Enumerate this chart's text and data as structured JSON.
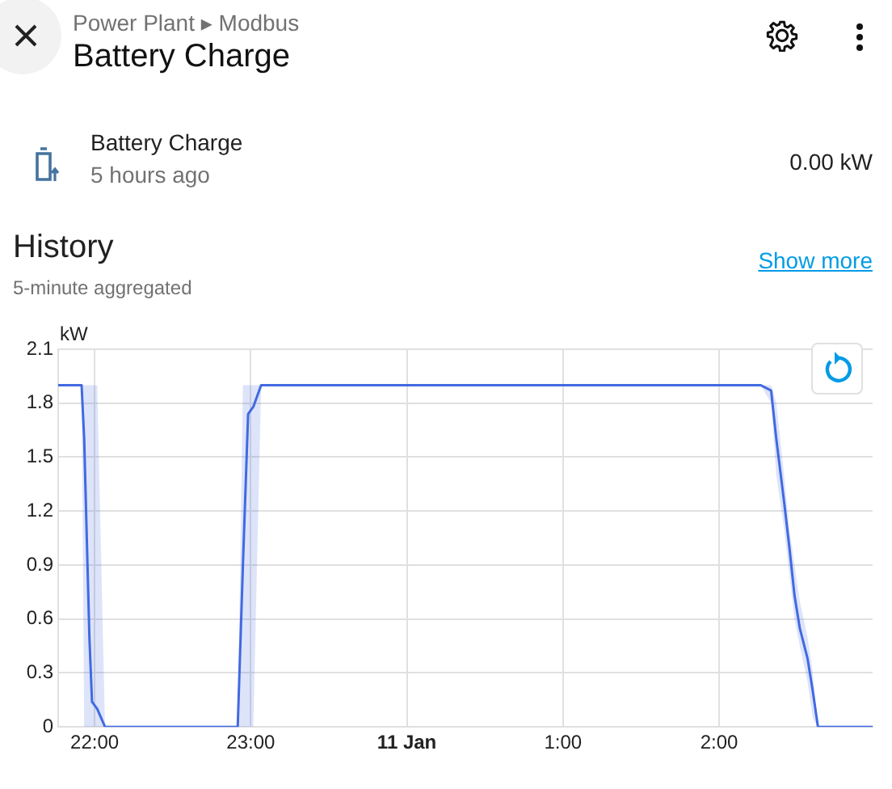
{
  "chart_data": {
    "type": "line",
    "title": "Battery Charge",
    "subtitle": "Power Plant ▸ Modbus",
    "ylabel": "kW",
    "annotations": [
      "Battery Charge",
      "5 hours ago",
      "0.00 kW",
      "History",
      "5-minute aggregated",
      "Show more"
    ],
    "x": [
      "--01-10T21:46",
      "--01-10T21:55",
      "--01-10T21:56",
      "--01-10T21:58",
      "--01-10T21:59",
      "--01-10T22:01",
      "--01-10T22:04",
      "--01-10T22:30",
      "--01-10T22:55",
      "--01-10T22:57",
      "--01-10T22:59",
      "--01-10T23:01",
      "--01-10T23:04",
      "--01-10T23:30",
      "--01-11T00:00",
      "--01-11T00:30",
      "--01-11T01:00",
      "--01-11T01:30",
      "--01-11T02:00",
      "--01-11T02:16",
      "--01-11T02:20",
      "--01-11T02:22",
      "--01-11T02:25",
      "--01-11T02:27",
      "--01-11T02:29",
      "--01-11T02:31",
      "--01-11T02:34",
      "--01-11T02:36",
      "--01-11T02:38",
      "--01-11T02:48",
      "--01-11T02:59"
    ],
    "series": [
      {
        "color": "#4169e1",
        "values": [
          1.9,
          1.9,
          1.6,
          0.5,
          0.14,
          0.1,
          0,
          0,
          0,
          0.9,
          1.74,
          1.78,
          1.9,
          1.9,
          1.9,
          1.9,
          1.9,
          1.9,
          1.9,
          1.9,
          1.87,
          1.6,
          1.25,
          1.0,
          0.73,
          0.55,
          0.38,
          0.2,
          0,
          0,
          0
        ],
        "lower": [
          1.9,
          1.9,
          0,
          0,
          0,
          0,
          0,
          0,
          0,
          0,
          0,
          0,
          1.9,
          1.9,
          1.9,
          1.9,
          1.9,
          1.9,
          1.9,
          1.9,
          1.8,
          1.4,
          1.1,
          0.85,
          0.6,
          0.45,
          0.25,
          0.05,
          0,
          0,
          0
        ],
        "upper": [
          1.9,
          1.9,
          1.9,
          1.9,
          1.9,
          1.9,
          0,
          0,
          0,
          1.9,
          1.9,
          1.9,
          1.9,
          1.9,
          1.9,
          1.9,
          1.9,
          1.9,
          1.9,
          1.9,
          1.9,
          1.8,
          1.4,
          1.1,
          0.9,
          0.7,
          0.5,
          0.3,
          0,
          0,
          0
        ]
      }
    ],
    "xlim": [
      "--01-10T21:46",
      "--01-11T02:59"
    ],
    "xticks": [
      {
        "value": "--01-10T22:00",
        "label": "22:00"
      },
      {
        "value": "--01-10T23:00",
        "label": "23:00"
      },
      {
        "value": "--01-11T00:00",
        "label": "11 Jan"
      },
      {
        "value": "--01-11T01:00",
        "label": "1:00"
      },
      {
        "value": "--01-11T02:00",
        "label": "2:00"
      }
    ],
    "ylim": [
      0,
      2.1
    ],
    "yticks": [
      0,
      0.3,
      0.6,
      0.9,
      1.2,
      1.5,
      1.8,
      2.1
    ],
    "grid": true
  }
}
